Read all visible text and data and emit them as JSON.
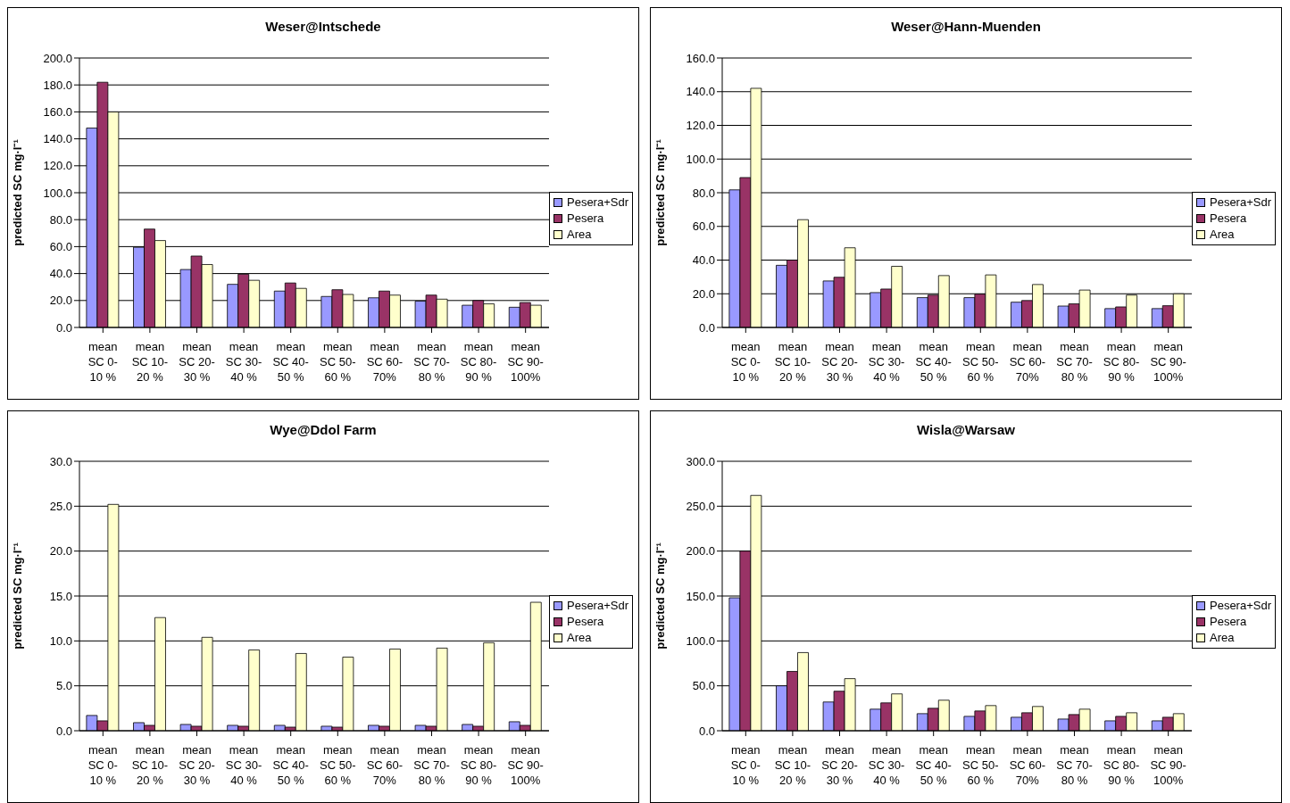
{
  "chart_data": [
    {
      "type": "bar",
      "title": "Weser@Intschede",
      "ylabel": "predicted SC mg·l⁻¹",
      "categories": [
        "mean SC 0-10 %",
        "mean SC 10-20 %",
        "mean SC 20-30 %",
        "mean SC 30-40 %",
        "mean SC 40-50 %",
        "mean SC 50-60 %",
        "mean SC 60-70%",
        "mean SC 70-80 %",
        "mean SC 80-90 %",
        "mean SC 90-100%"
      ],
      "series": [
        {
          "name": "Pesera+Sdr",
          "color": "#9999ff",
          "values": [
            148,
            59.5,
            43,
            32,
            27,
            23,
            22,
            19.5,
            16.5,
            15
          ]
        },
        {
          "name": "Pesera",
          "color": "#993366",
          "values": [
            182,
            73,
            53,
            39.5,
            33,
            28,
            27,
            24,
            20,
            18.5
          ]
        },
        {
          "name": "Area",
          "color": "#ffffcc",
          "values": [
            160,
            64.5,
            46.7,
            35,
            29,
            24.5,
            24,
            21,
            17.5,
            16.5
          ]
        }
      ],
      "ylim": [
        0,
        200
      ],
      "yticks": [
        {
          "value": 0,
          "label": "0.0"
        },
        {
          "value": 20,
          "label": "20.0"
        },
        {
          "value": 40,
          "label": "40.0"
        },
        {
          "value": 60,
          "label": "60.0"
        },
        {
          "value": 80,
          "label": "80.0"
        },
        {
          "value": 100,
          "label": "100.0"
        },
        {
          "value": 120,
          "label": "120.0"
        },
        {
          "value": 140,
          "label": "140.0"
        },
        {
          "value": 160,
          "label": "160.0"
        },
        {
          "value": 180,
          "label": "180.0"
        },
        {
          "value": 200,
          "label": "200.0"
        }
      ],
      "grid": "y",
      "legend": "right"
    },
    {
      "type": "bar",
      "title": "Weser@Hann-Muenden",
      "ylabel": "predicted SC mg·l⁻¹",
      "categories": [
        "mean SC 0-10 %",
        "mean SC 10-20 %",
        "mean SC 20-30 %",
        "mean SC 30-40 %",
        "mean SC 40-50 %",
        "mean SC 50-60 %",
        "mean SC 60-70%",
        "mean SC 70-80 %",
        "mean SC 80-90 %",
        "mean SC 90-100%"
      ],
      "series": [
        {
          "name": "Pesera+Sdr",
          "color": "#9999ff",
          "values": [
            81.7,
            36.9,
            27.6,
            20.7,
            17.7,
            17.7,
            15,
            12.7,
            11.2,
            11.2
          ]
        },
        {
          "name": "Pesera",
          "color": "#993366",
          "values": [
            89,
            40,
            29.8,
            22.8,
            19.2,
            19.8,
            16,
            14,
            12.2,
            12.9
          ]
        },
        {
          "name": "Area",
          "color": "#ffffcc",
          "values": [
            142,
            64,
            47.3,
            36.3,
            30.8,
            31.2,
            25.5,
            22.2,
            19.2,
            20
          ]
        }
      ],
      "ylim": [
        0,
        160
      ],
      "yticks": [
        {
          "value": 0,
          "label": "0.0"
        },
        {
          "value": 20,
          "label": "20.0"
        },
        {
          "value": 40,
          "label": "40.0"
        },
        {
          "value": 60,
          "label": "60.0"
        },
        {
          "value": 80,
          "label": "80.0"
        },
        {
          "value": 100,
          "label": "100.0"
        },
        {
          "value": 120,
          "label": "120.0"
        },
        {
          "value": 140,
          "label": "140.0"
        },
        {
          "value": 160,
          "label": "160.0"
        }
      ],
      "grid": "y",
      "legend": "right"
    },
    {
      "type": "bar",
      "title": "Wye@Ddol Farm",
      "ylabel": "predicted SC mg·l⁻¹",
      "categories": [
        "mean SC 0-10 %",
        "mean SC 10-20 %",
        "mean SC 20-30 %",
        "mean SC 30-40 %",
        "mean SC 40-50 %",
        "mean SC 50-60 %",
        "mean SC 60-70%",
        "mean SC 70-80 %",
        "mean SC 80-90 %",
        "mean SC 90-100%"
      ],
      "series": [
        {
          "name": "Pesera+Sdr",
          "color": "#9999ff",
          "values": [
            1.7,
            0.9,
            0.7,
            0.6,
            0.6,
            0.5,
            0.6,
            0.6,
            0.7,
            1.0
          ]
        },
        {
          "name": "Pesera",
          "color": "#993366",
          "values": [
            1.1,
            0.6,
            0.5,
            0.5,
            0.4,
            0.4,
            0.5,
            0.5,
            0.5,
            0.6
          ]
        },
        {
          "name": "Area",
          "color": "#ffffcc",
          "values": [
            25.2,
            12.6,
            10.4,
            9.0,
            8.6,
            8.2,
            9.1,
            9.2,
            9.8,
            14.3
          ]
        }
      ],
      "ylim": [
        0,
        30
      ],
      "yticks": [
        {
          "value": 0,
          "label": "0.0"
        },
        {
          "value": 5,
          "label": "5.0"
        },
        {
          "value": 10,
          "label": "10.0"
        },
        {
          "value": 15,
          "label": "15.0"
        },
        {
          "value": 20,
          "label": "20.0"
        },
        {
          "value": 25,
          "label": "25.0"
        },
        {
          "value": 30,
          "label": "30.0"
        }
      ],
      "grid": "y",
      "legend": "right"
    },
    {
      "type": "bar",
      "title": "Wisla@Warsaw",
      "ylabel": "predicted SC mg·l⁻¹",
      "categories": [
        "mean SC 0-10 %",
        "mean SC 10-20 %",
        "mean SC 20-30 %",
        "mean SC 30-40 %",
        "mean SC 40-50 %",
        "mean SC 50-60 %",
        "mean SC 60-70%",
        "mean SC 70-80 %",
        "mean SC 80-90 %",
        "mean SC 90-100%"
      ],
      "series": [
        {
          "name": "Pesera+Sdr",
          "color": "#9999ff",
          "values": [
            148,
            50,
            32,
            24,
            19,
            16,
            15,
            13,
            11,
            11
          ]
        },
        {
          "name": "Pesera",
          "color": "#993366",
          "values": [
            200,
            66,
            44,
            31,
            25,
            22,
            20,
            18,
            16,
            15
          ]
        },
        {
          "name": "Area",
          "color": "#ffffcc",
          "values": [
            262,
            87,
            58,
            41,
            34,
            28,
            27,
            24,
            20,
            19
          ]
        }
      ],
      "ylim": [
        0,
        300
      ],
      "yticks": [
        {
          "value": 0,
          "label": "0.0"
        },
        {
          "value": 50,
          "label": "50.0"
        },
        {
          "value": 100,
          "label": "100.0"
        },
        {
          "value": 150,
          "label": "150.0"
        },
        {
          "value": 200,
          "label": "200.0"
        },
        {
          "value": 250,
          "label": "250.0"
        },
        {
          "value": 300,
          "label": "300.0"
        }
      ],
      "grid": "y",
      "legend": "right"
    }
  ]
}
